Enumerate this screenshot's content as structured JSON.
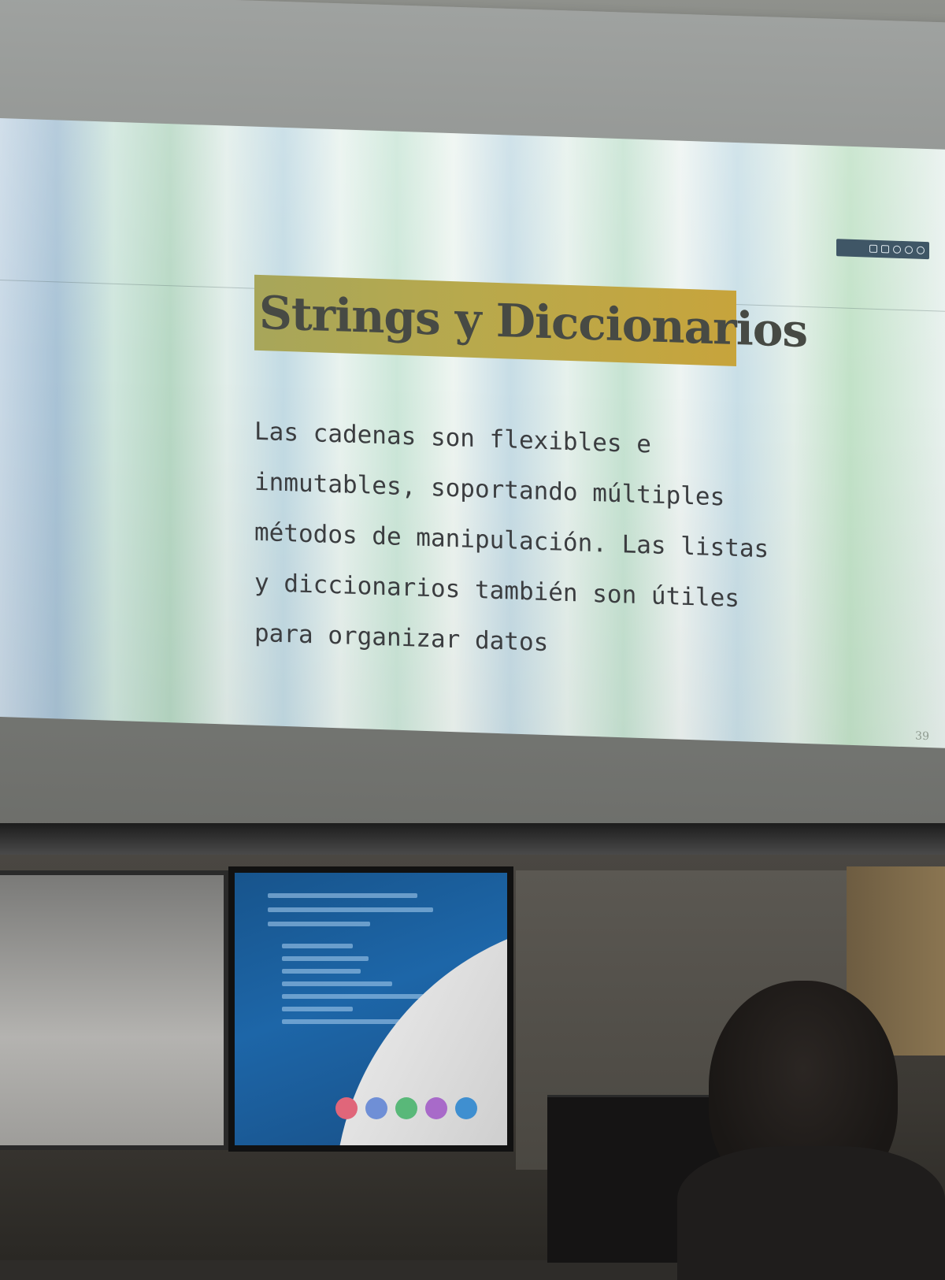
{
  "slide": {
    "title": "Strings y Diccionarios",
    "body_lines": [
      "Las cadenas son flexibles e",
      "inmutables, soportando múltiples",
      "métodos de manipulación. Las listas",
      "y diccionarios también son útiles",
      "para organizar datos"
    ],
    "page_number": "39"
  },
  "colors": {
    "title_highlight": "#b8a94c",
    "body_text": "#3b3d40",
    "tv_background": "#1d66a8"
  }
}
